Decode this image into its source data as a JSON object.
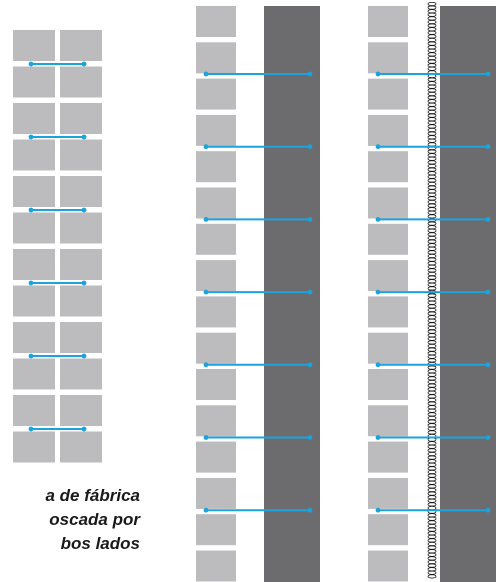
{
  "caption": {
    "lines": [
      "a de fábrica",
      "oscada por",
      "bos lados"
    ]
  },
  "colors": {
    "brick": "#bcbcbe",
    "dark_panel": "#6c6c6e",
    "tie": "#1aa3dd",
    "spring": "#1a1a1a",
    "background": "#ffffff"
  },
  "figures": [
    {
      "id": "double-brick-wall",
      "courses": 12,
      "ties": 6
    },
    {
      "id": "brick-with-dark-panel",
      "courses": 16,
      "ties": 7
    },
    {
      "id": "brick-with-dark-panel-and-spring",
      "courses": 16,
      "ties": 7
    }
  ]
}
